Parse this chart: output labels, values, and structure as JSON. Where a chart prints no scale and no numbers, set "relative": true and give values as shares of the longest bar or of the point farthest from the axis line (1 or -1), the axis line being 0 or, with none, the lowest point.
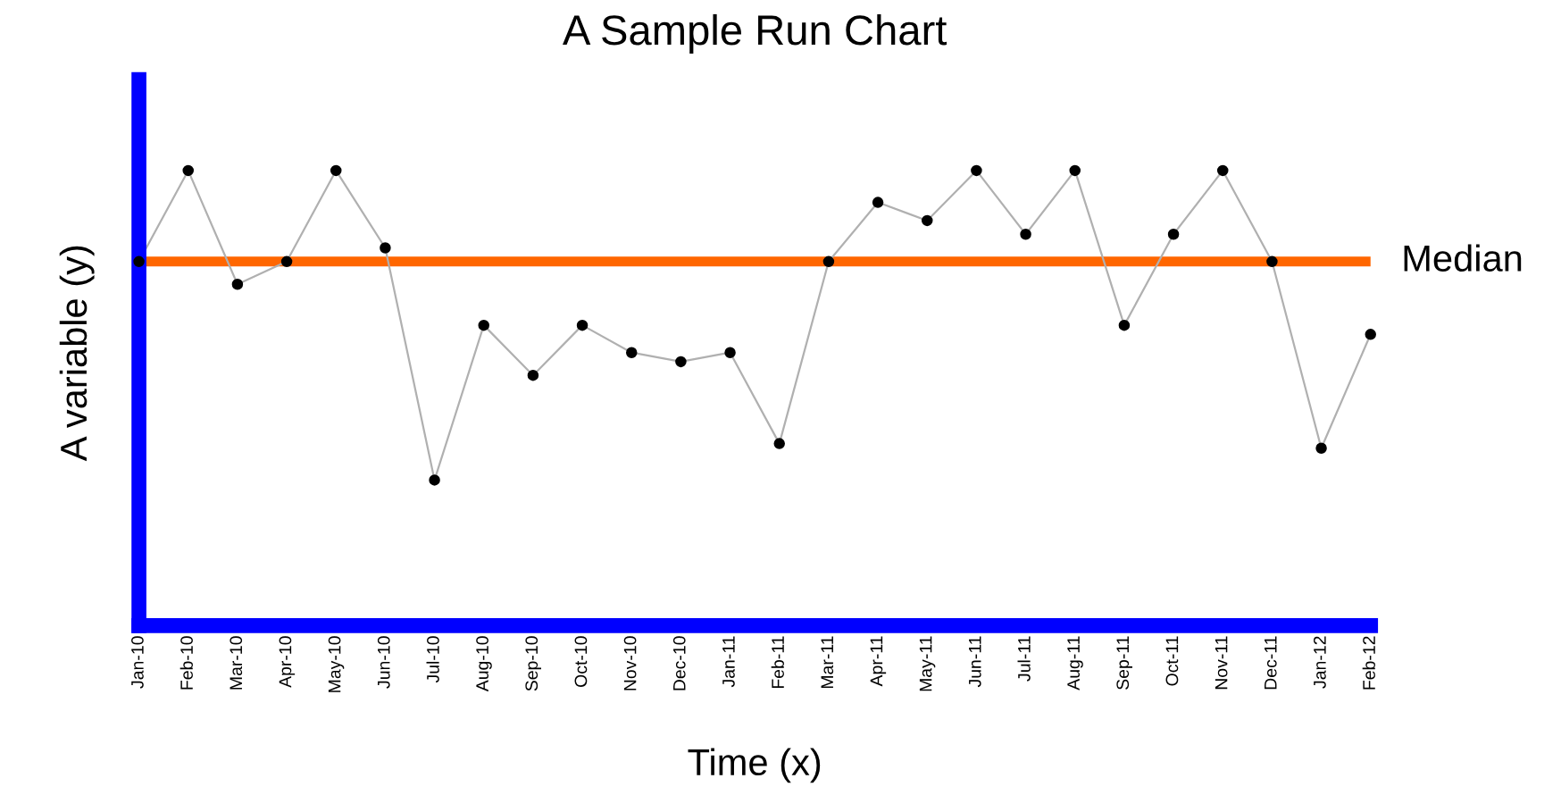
{
  "chart_data": {
    "type": "line",
    "title": "A Sample Run Chart",
    "xlabel": "Time (x)",
    "ylabel": "A variable (y)",
    "relative": true,
    "categories": [
      "Jan-10",
      "Feb-10",
      "Mar-10",
      "Apr-10",
      "May-10",
      "Jun-10",
      "Jul-10",
      "Aug-10",
      "Sep-10",
      "Oct-10",
      "Nov-10",
      "Dec-10",
      "Jan-11",
      "Feb-11",
      "Mar-11",
      "Apr-11",
      "May-11",
      "Jun-11",
      "Jul-11",
      "Aug-11",
      "Sep-11",
      "Oct-11",
      "Nov-11",
      "Dec-11",
      "Jan-12",
      "Feb-12"
    ],
    "series": [
      {
        "color": "#b0b0b0",
        "values": [
          0.8,
          1,
          0.75,
          0.8,
          1,
          0.83,
          0.32,
          0.66,
          0.55,
          0.66,
          0.6,
          0.58,
          0.6,
          0.4,
          0.8,
          0.93,
          0.89,
          1,
          0.86,
          1,
          0.66,
          0.86,
          1,
          0.8,
          0.39,
          0.64
        ]
      }
    ],
    "ref_lines": [
      {
        "axis": "y",
        "value": 0.8,
        "label": "Median",
        "color": "#ff6600"
      }
    ],
    "marker": "circle",
    "line_style": "solid",
    "grid": false,
    "legend": false
  }
}
